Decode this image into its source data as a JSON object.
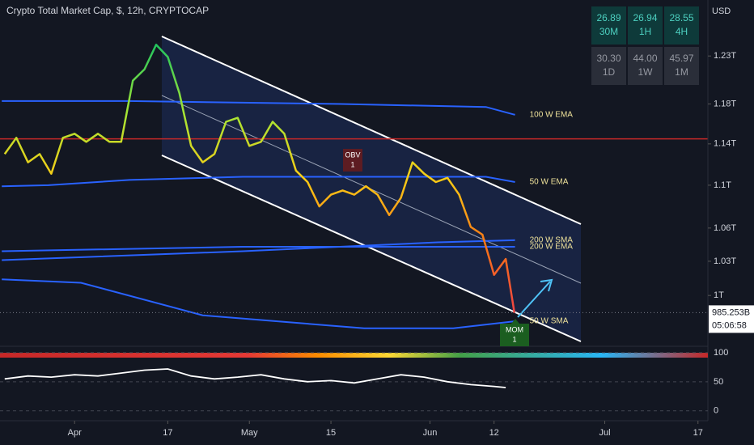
{
  "header": {
    "title": "Crypto Total Market Cap, $, 12h, CRYPTOCAP",
    "currency": "USD"
  },
  "performance": [
    {
      "value": "26.89",
      "period": "30M"
    },
    {
      "value": "26.94",
      "period": "1H"
    },
    {
      "value": "28.55",
      "period": "4H"
    },
    {
      "value": "30.30",
      "period": "1D"
    },
    {
      "value": "44.00",
      "period": "1W"
    },
    {
      "value": "45.97",
      "period": "1M"
    }
  ],
  "annotations": [
    {
      "text": "OBV",
      "count": "1"
    },
    {
      "text": "MOM",
      "count": "1"
    }
  ],
  "chart_data": [
    {
      "type": "line",
      "log": true,
      "xlim": [
        -12.8,
        108.7
      ],
      "xticks": [
        {
          "value": 0,
          "label": "Apr"
        },
        {
          "value": 16,
          "label": "17"
        },
        {
          "value": 30,
          "label": "May"
        },
        {
          "value": 44,
          "label": "15"
        },
        {
          "value": 61,
          "label": "Jun"
        },
        {
          "value": 72,
          "label": "12"
        },
        {
          "value": 91,
          "label": "Jul"
        },
        {
          "value": 107,
          "label": "17"
        }
      ],
      "ylim": [
        0.957,
        1.291
      ],
      "yticks": [
        {
          "value": 1.23,
          "label": "1.23T"
        },
        {
          "value": 1.18,
          "label": "1.18T"
        },
        {
          "value": 1.14,
          "label": "1.14T"
        },
        {
          "value": 1.1,
          "label": "1.1T"
        },
        {
          "value": 1.06,
          "label": "1.06T"
        },
        {
          "value": 1.03,
          "label": "1.03T"
        },
        {
          "value": 1,
          "label": "1T"
        }
      ],
      "price": {
        "colors": [
          "#22c55e",
          "#a3e635",
          "#facc15",
          "#f97316",
          "#ef4444"
        ],
        "x": [
          -12,
          -10,
          -8,
          -6,
          -4,
          -2,
          0,
          2,
          4,
          6,
          8,
          10,
          12,
          14,
          16,
          18,
          20,
          22,
          24,
          26,
          28,
          30,
          32,
          34,
          36,
          38,
          40,
          42,
          44,
          46,
          48,
          50,
          52,
          54,
          56,
          58,
          60,
          62,
          64,
          66,
          68,
          70,
          72,
          74,
          75.5
        ],
        "values": [
          1.13,
          1.146,
          1.122,
          1.13,
          1.111,
          1.146,
          1.15,
          1.142,
          1.15,
          1.142,
          1.142,
          1.204,
          1.216,
          1.242,
          1.229,
          1.191,
          1.138,
          1.122,
          1.13,
          1.162,
          1.166,
          1.138,
          1.142,
          1.162,
          1.15,
          1.114,
          1.103,
          1.08,
          1.091,
          1.095,
          1.091,
          1.099,
          1.091,
          1.072,
          1.088,
          1.122,
          1.111,
          1.103,
          1.107,
          1.091,
          1.061,
          1.054,
          1.018,
          1.032,
          0.985
        ]
      },
      "last_price": {
        "value": 0.985253,
        "label": "985.253B",
        "countdown": "05:06:58"
      },
      "hline": {
        "value": 1.145,
        "color": "#c62828"
      },
      "series": [
        {
          "name": "100 W EMA",
          "color": "#2962ff",
          "x": [
            -12.5,
            9.4,
            45.6,
            70.6,
            75.6
          ],
          "values": [
            1.183,
            1.183,
            1.18,
            1.177,
            1.169
          ]
        },
        {
          "name": "50 W EMA",
          "color": "#2962ff",
          "x": [
            -12.5,
            -4.5,
            9.4,
            28.9,
            70.6,
            75.6
          ],
          "values": [
            1.099,
            1.1,
            1.105,
            1.108,
            1.108,
            1.103
          ]
        },
        {
          "name": "200 W SMA",
          "color": "#2962ff",
          "x": [
            -12.5,
            28.9,
            62.3,
            75.6
          ],
          "values": [
            1.031,
            1.039,
            1.047,
            1.049
          ]
        },
        {
          "name": "200 W EMA",
          "color": "#2962ff",
          "x": [
            -12.5,
            28.9,
            63.7,
            75.6
          ],
          "values": [
            1.039,
            1.043,
            1.043,
            1.043
          ]
        },
        {
          "name": "50 W SMA",
          "color": "#2962ff",
          "x": [
            -12.5,
            1.1,
            22,
            49.7,
            65,
            75.6
          ],
          "values": [
            1.014,
            1.011,
            0.983,
            0.972,
            0.972,
            0.978
          ]
        }
      ]
    },
    {
      "type": "line",
      "ylim": [
        -17,
        111
      ],
      "yticks": [
        0,
        50,
        100
      ],
      "color": "#ffffff",
      "x": [
        -12,
        -8,
        -4,
        0,
        4,
        8,
        12,
        16,
        20,
        24,
        28,
        32,
        36,
        40,
        44,
        48,
        52,
        56,
        60,
        64,
        68,
        72,
        74
      ],
      "values": [
        55,
        60,
        58,
        62,
        60,
        65,
        70,
        72,
        60,
        55,
        58,
        62,
        55,
        50,
        52,
        48,
        55,
        62,
        58,
        50,
        45,
        42,
        40
      ]
    }
  ]
}
